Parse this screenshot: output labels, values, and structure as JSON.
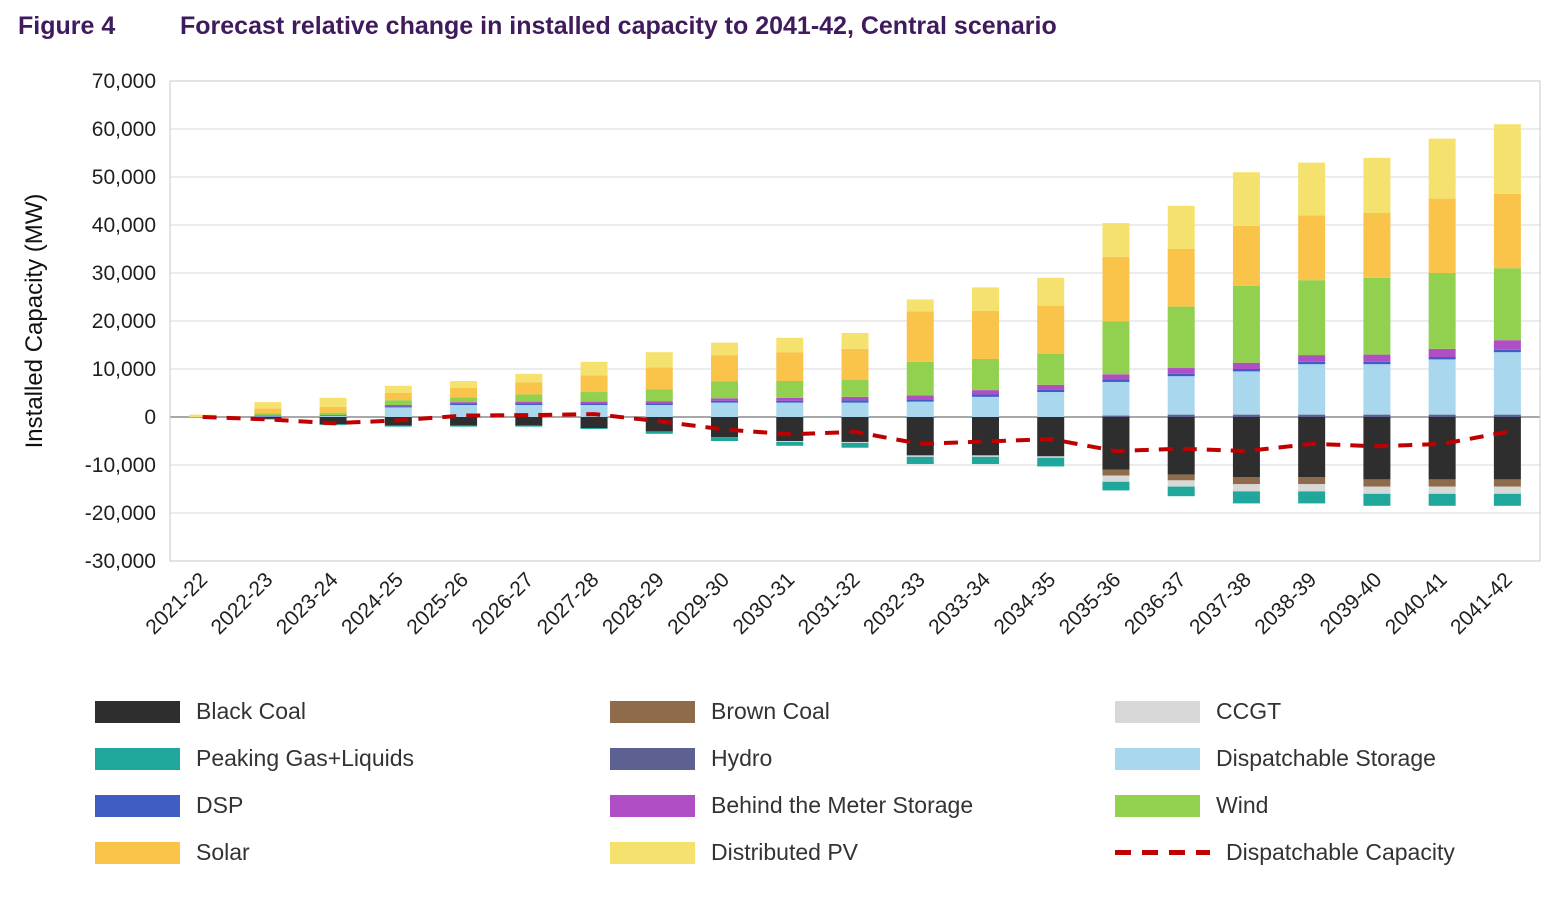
{
  "figure": {
    "label": "Figure 4",
    "title": "Forecast relative change in installed capacity to 2041-42, Central scenario"
  },
  "chart_data": {
    "type": "bar",
    "stacked": true,
    "title": "Forecast relative change in installed capacity to 2041-42, Central scenario",
    "xlabel": "",
    "ylabel": "Installed Capacity (MW)",
    "ylim": [
      -30000,
      70000
    ],
    "ytick_step": 10000,
    "grid": true,
    "legend_position": "bottom",
    "categories": [
      "2021-22",
      "2022-23",
      "2023-24",
      "2024-25",
      "2025-26",
      "2026-27",
      "2027-28",
      "2028-29",
      "2029-30",
      "2030-31",
      "2031-32",
      "2032-33",
      "2033-34",
      "2034-35",
      "2035-36",
      "2036-37",
      "2037-38",
      "2038-39",
      "2039-40",
      "2040-41",
      "2041-42"
    ],
    "series": [
      {
        "name": "Hydro",
        "color": "#5d6192",
        "values": [
          0,
          0,
          0,
          0,
          0,
          0,
          0,
          0,
          0,
          0,
          0,
          0,
          0,
          0,
          300,
          500,
          500,
          500,
          500,
          500,
          500
        ]
      },
      {
        "name": "Dispatchable Storage",
        "color": "#a9d7ee",
        "values": [
          0,
          100,
          200,
          2000,
          2500,
          2500,
          2500,
          2500,
          3000,
          3000,
          3000,
          3200,
          4200,
          5200,
          7000,
          8000,
          9000,
          10500,
          10500,
          11500,
          13000
        ]
      },
      {
        "name": "DSP",
        "color": "#3f5dc4",
        "values": [
          0,
          100,
          100,
          200,
          300,
          300,
          300,
          300,
          400,
          400,
          500,
          500,
          500,
          500,
          500,
          500,
          500,
          500,
          500,
          500,
          500
        ]
      },
      {
        "name": "Behind the Meter Storage",
        "color": "#b04ec4",
        "values": [
          0,
          100,
          100,
          300,
          300,
          400,
          400,
          500,
          500,
          600,
          700,
          800,
          900,
          1000,
          1100,
          1200,
          1300,
          1400,
          1500,
          1700,
          2000
        ]
      },
      {
        "name": "Wind",
        "color": "#92d050",
        "values": [
          0,
          500,
          500,
          1000,
          1000,
          1500,
          2000,
          2500,
          3500,
          3500,
          3500,
          7000,
          6500,
          6500,
          11000,
          12800,
          16000,
          15600,
          16000,
          15800,
          15000
        ]
      },
      {
        "name": "Solar",
        "color": "#fac34a",
        "values": [
          0,
          1000,
          1200,
          1500,
          2000,
          2500,
          3500,
          4500,
          5500,
          6000,
          6500,
          10500,
          10000,
          10000,
          13500,
          12000,
          12500,
          13500,
          13500,
          15500,
          15500
        ]
      },
      {
        "name": "Distributed PV",
        "color": "#f5e26e",
        "values": [
          500,
          1300,
          1900,
          1500,
          1400,
          1800,
          2800,
          3200,
          2600,
          3000,
          3300,
          2500,
          4900,
          5800,
          7000,
          9000,
          11200,
          11000,
          11500,
          12500,
          14500
        ]
      },
      {
        "name": "Black Coal",
        "color": "#2e2e2e",
        "values": [
          0,
          -400,
          -1500,
          -1800,
          -1800,
          -1800,
          -2300,
          -3000,
          -4200,
          -5000,
          -5200,
          -8000,
          -8000,
          -8200,
          -11000,
          -12000,
          -12500,
          -12500,
          -13000,
          -13000,
          -13000
        ]
      },
      {
        "name": "Brown Coal",
        "color": "#8e6b4a",
        "values": [
          0,
          0,
          0,
          0,
          0,
          0,
          0,
          0,
          0,
          0,
          0,
          0,
          0,
          0,
          -1200,
          -1200,
          -1500,
          -1500,
          -1500,
          -1500,
          -1500
        ]
      },
      {
        "name": "CCGT",
        "color": "#d8d8d8",
        "values": [
          0,
          0,
          0,
          0,
          0,
          0,
          0,
          0,
          0,
          -200,
          -200,
          -300,
          -300,
          -300,
          -1300,
          -1300,
          -1500,
          -1500,
          -1500,
          -1500,
          -1500
        ]
      },
      {
        "name": "Peaking Gas+Liquids",
        "color": "#1fa79c",
        "values": [
          0,
          -100,
          -200,
          -200,
          -200,
          -200,
          -200,
          -500,
          -800,
          -800,
          -1000,
          -1500,
          -1500,
          -1800,
          -1800,
          -2000,
          -2500,
          -2500,
          -2500,
          -2500,
          -2500
        ]
      }
    ],
    "line_series": {
      "name": "Dispatchable Capacity",
      "color": "#c00000",
      "style": "dashed",
      "values": [
        0,
        -500,
        -1300,
        -700,
        300,
        400,
        600,
        -900,
        -2600,
        -3600,
        -3100,
        -5600,
        -5100,
        -4600,
        -7100,
        -6600,
        -7100,
        -5600,
        -6100,
        -5600,
        -3100
      ]
    }
  },
  "legend": {
    "items": [
      {
        "name": "Black Coal",
        "color": "#2e2e2e",
        "swatch": "box"
      },
      {
        "name": "Brown Coal",
        "color": "#8e6b4a",
        "swatch": "box"
      },
      {
        "name": "CCGT",
        "color": "#d8d8d8",
        "swatch": "box"
      },
      {
        "name": "Peaking Gas+Liquids",
        "color": "#1fa79c",
        "swatch": "box"
      },
      {
        "name": "Hydro",
        "color": "#5d6192",
        "swatch": "box"
      },
      {
        "name": "Dispatchable Storage",
        "color": "#a9d7ee",
        "swatch": "box"
      },
      {
        "name": "DSP",
        "color": "#3f5dc4",
        "swatch": "box"
      },
      {
        "name": "Behind the Meter Storage",
        "color": "#b04ec4",
        "swatch": "box"
      },
      {
        "name": "Wind",
        "color": "#92d050",
        "swatch": "box"
      },
      {
        "name": "Solar",
        "color": "#fac34a",
        "swatch": "box"
      },
      {
        "name": "Distributed PV",
        "color": "#f5e26e",
        "swatch": "box"
      },
      {
        "name": "Dispatchable Capacity",
        "color": "#c00000",
        "swatch": "dashed-line"
      }
    ]
  }
}
